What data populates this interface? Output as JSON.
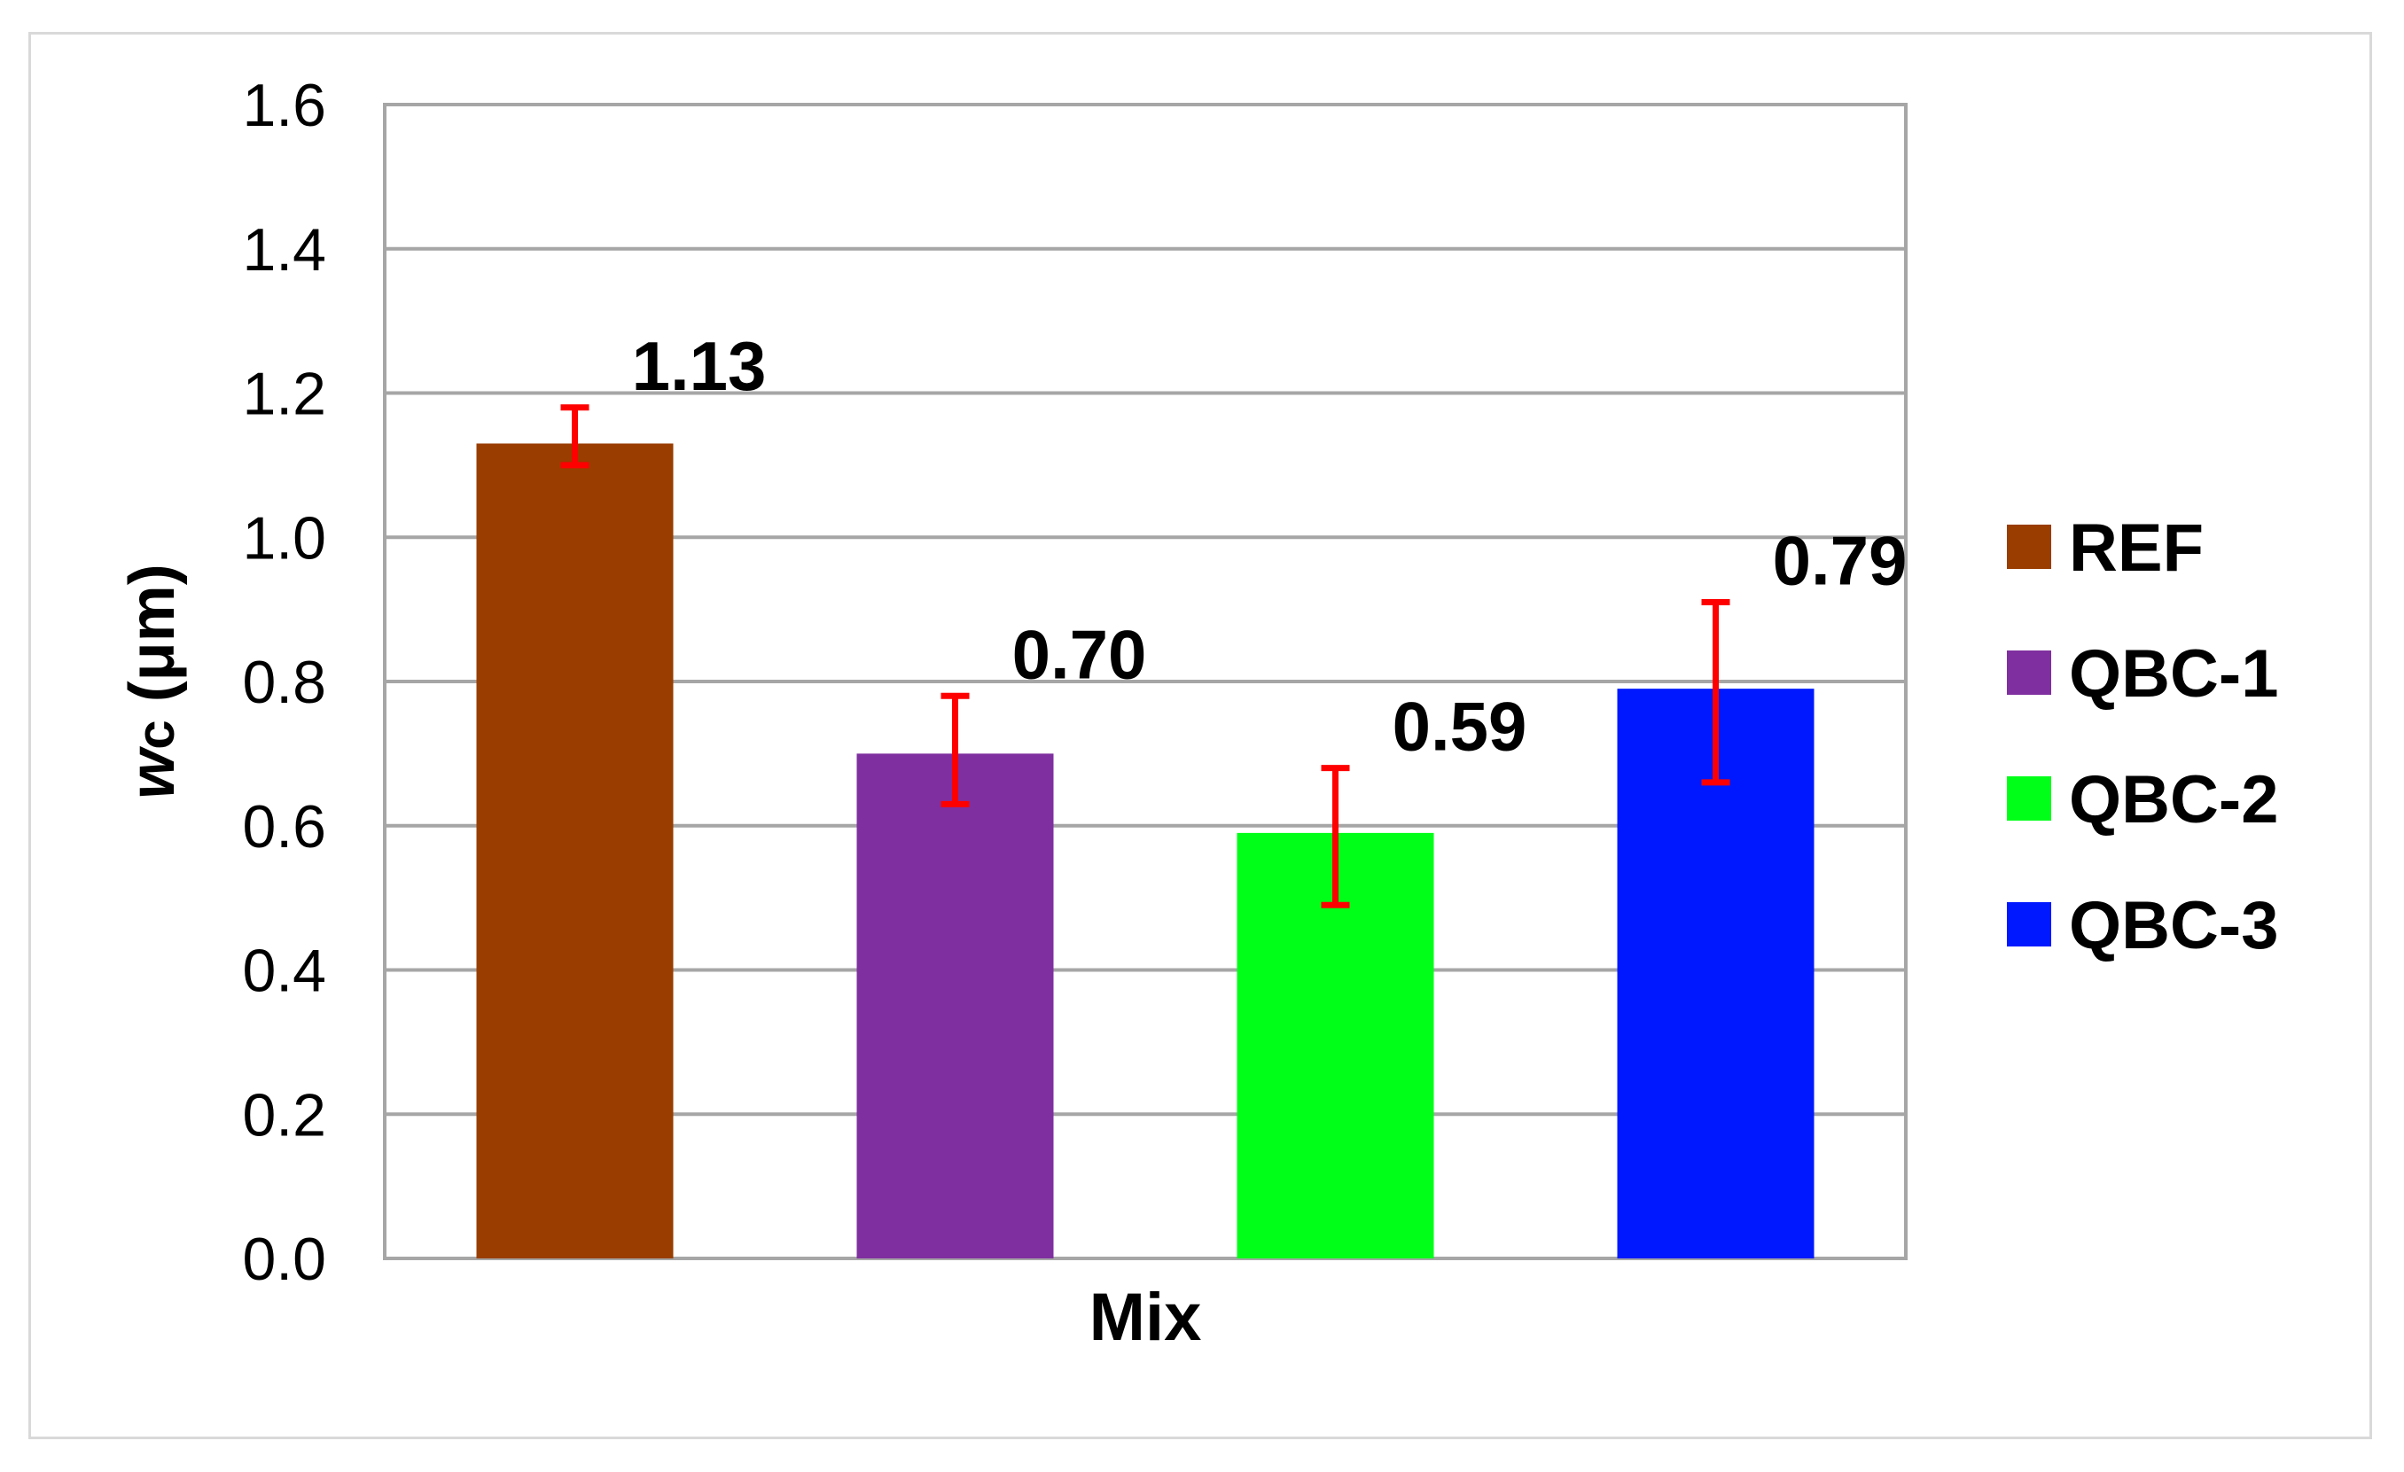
{
  "chart_data": {
    "type": "bar",
    "categories": [
      "REF",
      "QBC-1",
      "QBC-2",
      "QBC-3"
    ],
    "values": [
      1.13,
      0.7,
      0.59,
      0.79
    ],
    "value_labels": [
      "1.13",
      "0.70",
      "0.59",
      "0.79"
    ],
    "error_bars": [
      {
        "low": 1.1,
        "high": 1.18
      },
      {
        "low": 0.63,
        "high": 0.78
      },
      {
        "low": 0.49,
        "high": 0.68
      },
      {
        "low": 0.66,
        "high": 0.91
      }
    ],
    "colors": [
      "#993d00",
      "#7f2f9f",
      "#00ff18",
      "#0018ff"
    ],
    "error_color": "#ff0000",
    "xlabel": "Mix",
    "ylabel_italic": "w",
    "ylabel_sub": "c",
    "ylabel_unit": " (μm)",
    "ylim": [
      0,
      1.6
    ],
    "yticks": [
      "0.0",
      "0.2",
      "0.4",
      "0.6",
      "0.8",
      "1.0",
      "1.2",
      "1.4",
      "1.6"
    ],
    "grid": true,
    "legend": {
      "position": "right",
      "entries": [
        "REF",
        "QBC-1",
        "QBC-2",
        "QBC-3"
      ]
    }
  }
}
